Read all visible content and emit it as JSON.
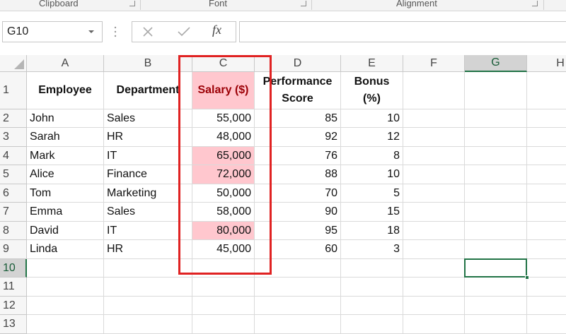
{
  "ribbon": {
    "groups": [
      "Clipboard",
      "Font",
      "Alignment"
    ]
  },
  "formula_bar": {
    "name_box": "G10",
    "function_icon": "fx"
  },
  "sheet": {
    "columns": [
      "A",
      "B",
      "C",
      "D",
      "E",
      "F",
      "G",
      "H"
    ],
    "row_numbers": [
      "1",
      "2",
      "3",
      "4",
      "5",
      "6",
      "7",
      "8",
      "9",
      "10",
      "11",
      "12",
      "13"
    ],
    "rows": [
      [
        "Employee",
        "Department",
        "Salary ($)",
        "Performance Score",
        "Bonus (%)"
      ],
      [
        "John",
        "Sales",
        "55,000",
        "85",
        "10"
      ],
      [
        "Sarah",
        "HR",
        "48,000",
        "92",
        "12"
      ],
      [
        "Mark",
        "IT",
        "65,000",
        "76",
        "8"
      ],
      [
        "Alice",
        "Finance",
        "72,000",
        "88",
        "10"
      ],
      [
        "Tom",
        "Marketing",
        "50,000",
        "70",
        "5"
      ],
      [
        "Emma",
        "Sales",
        "58,000",
        "90",
        "15"
      ],
      [
        "David",
        "IT",
        "80,000",
        "95",
        "18"
      ],
      [
        "Linda",
        "HR",
        "45,000",
        "60",
        "3"
      ]
    ]
  }
}
